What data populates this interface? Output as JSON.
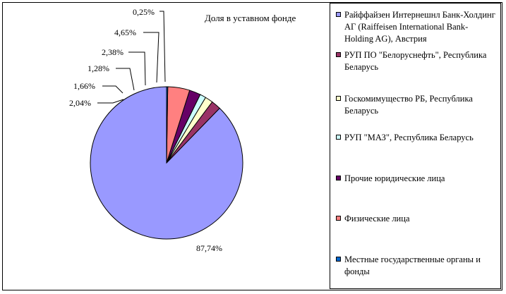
{
  "chart_data": {
    "type": "pie",
    "title": "Доля в уставном фонде",
    "legend_position": "right",
    "slices": [
      {
        "name": "Райффайзен Интернешнл Банк-Холдинг АГ (Raiffeisen International Bank-Holding AG), Австрия",
        "value": 87.74,
        "label": "87,74%",
        "color": "#9999FF"
      },
      {
        "name": "РУП ПО \"Белоруснефть\", Республика Беларусь",
        "value": 2.04,
        "label": "2,04%",
        "color": "#993366"
      },
      {
        "name": "Госкомимущество РБ, Республика Беларусь",
        "value": 1.66,
        "label": "1,66%",
        "color": "#FFFFCC"
      },
      {
        "name": "РУП \"МАЗ\", Республика Беларусь",
        "value": 1.28,
        "label": "1,28%",
        "color": "#CCFFFF"
      },
      {
        "name": "Прочие юридические лица",
        "value": 2.38,
        "label": "2,38%",
        "color": "#660066"
      },
      {
        "name": "Физические лица",
        "value": 4.65,
        "label": "4,65%",
        "color": "#FF8080"
      },
      {
        "name": "Местные государственные органы и фонды",
        "value": 0.25,
        "label": "0,25%",
        "color": "#0066CC"
      }
    ]
  }
}
